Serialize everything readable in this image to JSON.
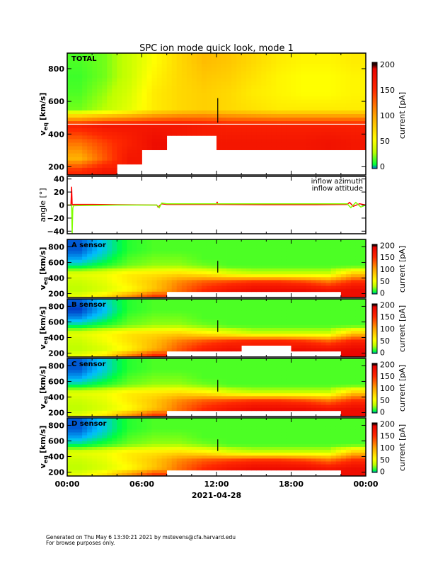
{
  "chart_data": {
    "type": "heatmap",
    "title": "SPC ion mode quick look, mode 1",
    "xlabel": "2021-04-28",
    "x_tick_labels": [
      "00:00",
      "06:00",
      "12:00",
      "18:00",
      "00:00"
    ],
    "x_range_hours": [
      0,
      24
    ],
    "time_bin_hours": 2,
    "velocity_bin_centers": [
      850,
      750,
      650,
      550,
      450,
      350,
      250,
      175
    ],
    "ylim_velocity": [
      150,
      895
    ],
    "y_tick_labels": [
      "200",
      "400",
      "600",
      "800"
    ],
    "ylabel": {
      "main": "v",
      "sub": "eq",
      "unit": "[km/s]"
    },
    "colorbar": {
      "label": "current [pA]",
      "range": [
        0,
        200
      ],
      "tick_labels": [
        "0",
        "50",
        "100",
        "150",
        "200"
      ]
    },
    "panels": [
      {
        "name": "TOTAL",
        "values": [
          [
            10,
            15,
            30,
            50,
            70,
            85,
            80,
            70,
            60,
            55,
            55,
            60
          ],
          [
            8,
            15,
            30,
            55,
            70,
            80,
            75,
            65,
            55,
            50,
            50,
            55
          ],
          [
            10,
            20,
            35,
            60,
            70,
            75,
            70,
            60,
            55,
            50,
            50,
            55
          ],
          [
            15,
            25,
            40,
            60,
            70,
            75,
            70,
            65,
            60,
            60,
            60,
            60
          ],
          [
            160,
            170,
            170,
            170,
            170,
            165,
            160,
            160,
            160,
            160,
            160,
            160
          ],
          [
            120,
            140,
            160,
            180,
            null,
            null,
            170,
            170,
            170,
            170,
            175,
            170
          ],
          [
            90,
            130,
            170,
            null,
            null,
            null,
            null,
            null,
            null,
            null,
            null,
            null
          ],
          [
            150,
            170,
            null,
            null,
            null,
            null,
            null,
            null,
            null,
            null,
            null,
            null
          ]
        ]
      },
      {
        "name": "A sensor",
        "values": [
          [
            -25,
            -12,
            5,
            10,
            10,
            10,
            10,
            10,
            10,
            10,
            10,
            10
          ],
          [
            -25,
            -12,
            5,
            10,
            10,
            10,
            10,
            10,
            10,
            10,
            10,
            10
          ],
          [
            -18,
            -6,
            10,
            15,
            15,
            10,
            10,
            10,
            10,
            10,
            10,
            10
          ],
          [
            -5,
            5,
            15,
            20,
            20,
            15,
            10,
            10,
            10,
            10,
            10,
            10
          ],
          [
            40,
            45,
            60,
            65,
            70,
            60,
            40,
            30,
            30,
            30,
            30,
            80
          ],
          [
            30,
            40,
            60,
            80,
            110,
            130,
            140,
            150,
            150,
            140,
            120,
            150
          ],
          [
            25,
            35,
            50,
            80,
            120,
            150,
            170,
            180,
            180,
            180,
            170,
            180
          ],
          [
            40,
            60,
            100,
            140,
            null,
            null,
            null,
            null,
            null,
            null,
            null,
            180
          ]
        ]
      },
      {
        "name": "B sensor",
        "values": [
          [
            -25,
            -12,
            5,
            10,
            10,
            10,
            10,
            10,
            10,
            10,
            10,
            10
          ],
          [
            -28,
            -15,
            5,
            10,
            10,
            10,
            10,
            10,
            10,
            10,
            10,
            10
          ],
          [
            -20,
            -8,
            10,
            15,
            15,
            10,
            10,
            10,
            10,
            10,
            10,
            10
          ],
          [
            -5,
            5,
            15,
            20,
            20,
            15,
            10,
            10,
            10,
            10,
            10,
            10
          ],
          [
            40,
            50,
            65,
            70,
            75,
            60,
            45,
            30,
            30,
            30,
            30,
            80
          ],
          [
            30,
            45,
            65,
            85,
            115,
            135,
            150,
            160,
            160,
            150,
            130,
            160
          ],
          [
            25,
            35,
            55,
            90,
            130,
            160,
            175,
            null,
            null,
            180,
            175,
            185
          ],
          [
            40,
            60,
            110,
            150,
            null,
            null,
            null,
            null,
            null,
            null,
            null,
            190
          ]
        ]
      },
      {
        "name": "C sensor",
        "values": [
          [
            -25,
            -12,
            5,
            10,
            10,
            10,
            10,
            10,
            10,
            10,
            10,
            10
          ],
          [
            -25,
            -12,
            5,
            10,
            10,
            10,
            10,
            10,
            10,
            10,
            10,
            10
          ],
          [
            -18,
            -6,
            10,
            15,
            15,
            10,
            10,
            10,
            10,
            10,
            10,
            10
          ],
          [
            -5,
            5,
            15,
            20,
            20,
            15,
            10,
            10,
            10,
            10,
            10,
            10
          ],
          [
            40,
            45,
            60,
            65,
            70,
            60,
            40,
            30,
            30,
            30,
            30,
            80
          ],
          [
            30,
            40,
            60,
            80,
            110,
            130,
            140,
            150,
            150,
            140,
            120,
            150
          ],
          [
            25,
            35,
            50,
            80,
            120,
            150,
            170,
            180,
            180,
            180,
            170,
            180
          ],
          [
            40,
            60,
            100,
            140,
            null,
            null,
            null,
            null,
            null,
            null,
            null,
            180
          ]
        ]
      },
      {
        "name": "D sensor",
        "values": [
          [
            -25,
            -12,
            5,
            10,
            10,
            10,
            10,
            10,
            10,
            10,
            10,
            10
          ],
          [
            -25,
            -12,
            5,
            10,
            10,
            10,
            10,
            10,
            10,
            10,
            10,
            10
          ],
          [
            -18,
            -6,
            10,
            15,
            15,
            10,
            10,
            10,
            10,
            10,
            10,
            10
          ],
          [
            -5,
            5,
            15,
            20,
            20,
            15,
            10,
            10,
            10,
            10,
            10,
            10
          ],
          [
            40,
            45,
            60,
            65,
            70,
            60,
            40,
            30,
            30,
            30,
            30,
            80
          ],
          [
            30,
            40,
            60,
            80,
            110,
            130,
            140,
            150,
            150,
            140,
            120,
            150
          ],
          [
            25,
            35,
            50,
            80,
            120,
            150,
            170,
            180,
            180,
            180,
            170,
            180
          ],
          [
            40,
            60,
            100,
            140,
            null,
            null,
            null,
            null,
            null,
            null,
            null,
            180
          ]
        ]
      }
    ],
    "angle_panel": {
      "ylabel": "angle [°]",
      "ylim": [
        -44,
        44
      ],
      "y_tick_labels": [
        "-40",
        "-20",
        "0",
        "20",
        "40"
      ],
      "series": [
        {
          "name": "inflow azimuth",
          "color": "#ff0000",
          "x": [
            0,
            0.3,
            0.35,
            0.4,
            0.5,
            2,
            4,
            7.2,
            7.3,
            7.6,
            8,
            12,
            12.05,
            12.1,
            16,
            20,
            22.5,
            22.7,
            23,
            23.5,
            24
          ],
          "y": [
            0,
            0,
            28,
            0,
            1,
            1,
            0.5,
            0,
            -3,
            2,
            1,
            1,
            5,
            1,
            0.5,
            0.5,
            1,
            4,
            -2,
            2,
            0
          ]
        },
        {
          "name": "inflow attitude",
          "color": "#80ff00",
          "x": [
            0,
            0.35,
            0.4,
            0.45,
            0.5,
            2,
            4,
            7.2,
            7.4,
            7.6,
            8,
            12,
            16,
            20,
            22.5,
            22.8,
            23.2,
            23.6,
            24
          ],
          "y": [
            0,
            0,
            -44,
            -5,
            -1,
            -0.5,
            0,
            0,
            -4,
            3,
            2,
            2,
            2,
            2,
            2,
            -4,
            4,
            -3,
            0
          ]
        }
      ]
    }
  },
  "footer": {
    "line1": "Generated on Thu May  6 13:30:21 2021 by mstevens@cfa.harvard.edu",
    "line2": "For browse purposes only."
  }
}
